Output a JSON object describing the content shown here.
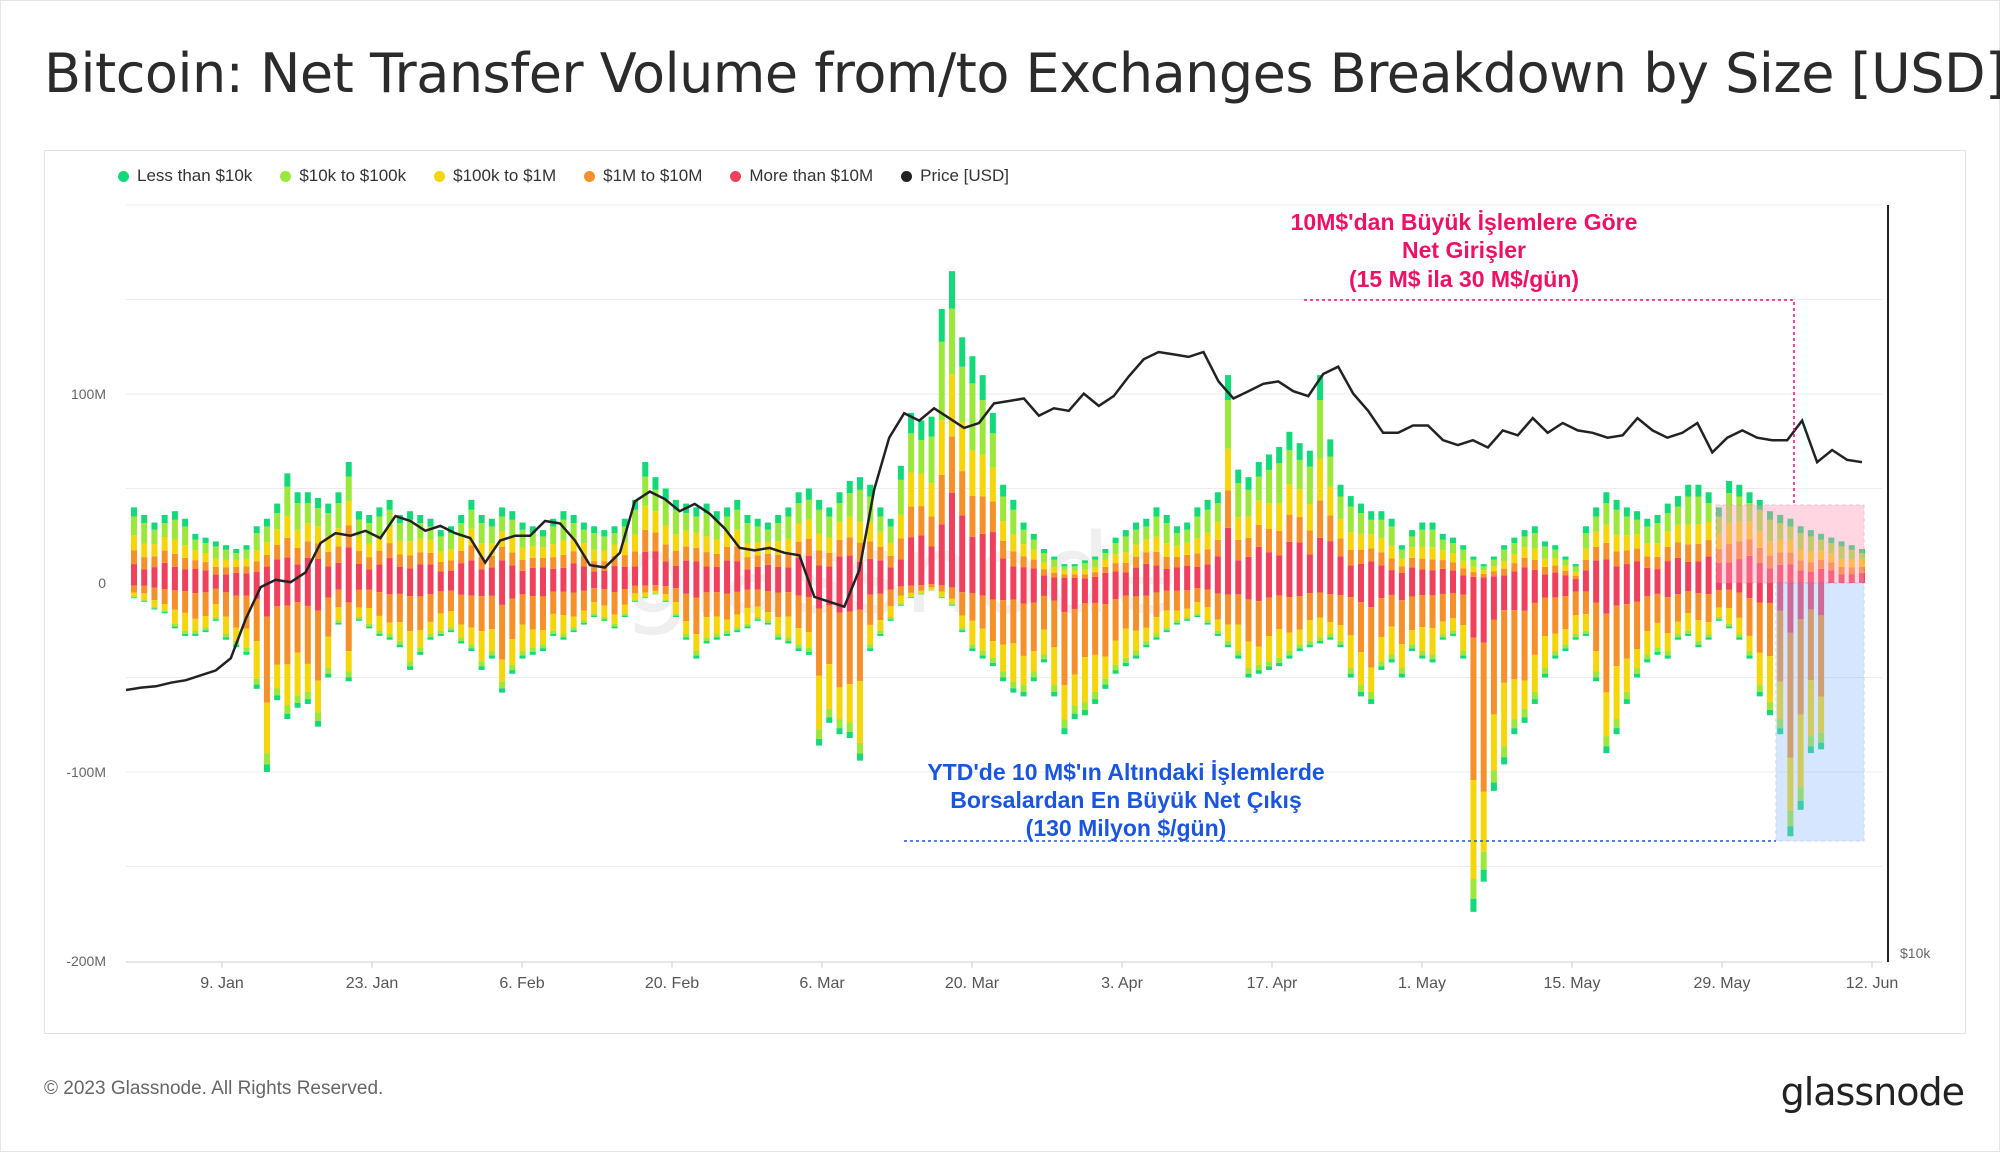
{
  "title": "Bitcoin: Net Transfer Volume from/to Exchanges Breakdown by Size [USD]",
  "legend": [
    {
      "label": "Less than $10k",
      "color": "#14d97a"
    },
    {
      "label": "$10k to $100k",
      "color": "#9be83a"
    },
    {
      "label": "$100k to $1M",
      "color": "#f5d60a"
    },
    {
      "label": "$1M to $10M",
      "color": "#f5902a"
    },
    {
      "label": "More than $10M",
      "color": "#f0405e"
    },
    {
      "label": "Price [USD]",
      "color": "#222222"
    }
  ],
  "annotations": {
    "inflow": {
      "line1": "10M$'dan Büyük İşlemlere Göre",
      "line2": "Net Girişler",
      "line3": "(15 M$ ila 30 M$/gün)",
      "color": "#ee1166"
    },
    "outflow": {
      "line1": "YTD'de 10 M$'ın Altındaki İşlemlerde",
      "line2": "Borsalardan En Büyük Net Çıkış",
      "line3": "(130 Milyon $/gün)",
      "color": "#1a55e0"
    }
  },
  "watermark": "glassnode",
  "footer": {
    "copyright": "© 2023 Glassnode. All Rights Reserved.",
    "logo": "glassnode"
  },
  "chart_data": {
    "type": "bar",
    "stacked": true,
    "title": "Bitcoin: Net Transfer Volume from/to Exchanges Breakdown by Size [USD]",
    "y_ticks": [
      "100M",
      "0",
      "-100M",
      "-200M"
    ],
    "y_range": [
      -200000000,
      200000000
    ],
    "price_axis_tick": "$10k",
    "x_ticks": [
      "9. Jan",
      "23. Jan",
      "6. Feb",
      "20. Feb",
      "6. Mar",
      "20. Mar",
      "3. Apr",
      "17. Apr",
      "1. May",
      "15. May",
      "29. May",
      "12. Jun"
    ],
    "x_range": [
      "2023-01-01",
      "2023-06-12"
    ],
    "legend_position": "top-left",
    "grid": true,
    "series": [
      {
        "name": "Less than $10k",
        "color": "#14d97a"
      },
      {
        "name": "$10k to $100k",
        "color": "#9be83a"
      },
      {
        "name": "$100k to $1M",
        "color": "#f5d60a"
      },
      {
        "name": "$1M to $10M",
        "color": "#f5902a"
      },
      {
        "name": "More than $10M",
        "color": "#f0405e"
      },
      {
        "name": "Price [USD]",
        "color": "#222222",
        "type": "line"
      }
    ],
    "daily_totals_millions": {
      "positive": [
        40,
        36,
        32,
        36,
        38,
        34,
        26,
        24,
        22,
        20,
        18,
        20,
        30,
        34,
        42,
        58,
        48,
        48,
        45,
        42,
        48,
        64,
        38,
        36,
        40,
        44,
        36,
        38,
        36,
        34,
        28,
        30,
        36,
        44,
        36,
        34,
        40,
        38,
        32,
        30,
        28,
        34,
        38,
        36,
        32,
        30,
        28,
        30,
        34,
        44,
        64,
        56,
        50,
        44,
        42,
        40,
        42,
        38,
        40,
        44,
        36,
        34,
        32,
        36,
        40,
        48,
        50,
        44,
        40,
        48,
        54,
        56,
        52,
        40,
        34,
        62,
        90,
        86,
        88,
        145,
        165,
        130,
        120,
        110,
        90,
        52,
        44,
        32,
        26,
        18,
        14,
        10,
        10,
        12,
        14,
        18,
        24,
        28,
        32,
        34,
        40,
        36,
        30,
        32,
        40,
        44,
        48,
        110,
        60,
        56,
        64,
        68,
        72,
        80,
        74,
        70,
        110,
        76,
        52,
        46,
        42,
        38,
        38,
        34,
        20,
        28,
        32,
        32,
        26,
        24,
        20,
        14,
        10,
        14,
        20,
        24,
        28,
        30,
        22,
        20,
        14,
        10,
        30,
        40,
        48,
        44,
        40,
        38,
        34,
        36,
        42,
        46,
        52,
        52,
        48,
        40,
        54,
        52,
        48,
        44,
        38,
        36,
        34,
        30,
        28,
        26,
        24,
        22,
        20,
        18
      ],
      "negative": [
        8,
        10,
        14,
        16,
        24,
        28,
        28,
        26,
        20,
        30,
        34,
        38,
        56,
        100,
        62,
        72,
        66,
        64,
        76,
        50,
        22,
        52,
        20,
        24,
        28,
        30,
        34,
        46,
        38,
        30,
        28,
        26,
        32,
        36,
        46,
        40,
        58,
        48,
        40,
        38,
        36,
        28,
        30,
        26,
        22,
        18,
        20,
        24,
        18,
        10,
        8,
        6,
        10,
        18,
        30,
        40,
        32,
        30,
        28,
        26,
        24,
        20,
        22,
        30,
        32,
        36,
        38,
        86,
        74,
        80,
        82,
        94,
        36,
        28,
        20,
        12,
        8,
        6,
        4,
        8,
        12,
        26,
        36,
        40,
        44,
        52,
        58,
        60,
        52,
        42,
        60,
        80,
        72,
        70,
        64,
        56,
        48,
        44,
        40,
        34,
        30,
        26,
        22,
        20,
        18,
        22,
        28,
        34,
        40,
        50,
        48,
        46,
        44,
        40,
        36,
        34,
        32,
        30,
        34,
        50,
        60,
        64,
        46,
        42,
        50,
        36,
        40,
        42,
        30,
        28,
        40,
        174,
        158,
        110,
        96,
        80,
        74,
        64,
        50,
        40,
        36,
        30,
        28,
        52,
        90,
        80,
        64,
        50,
        42,
        38,
        40,
        30,
        28,
        34,
        30,
        20,
        24,
        30,
        40,
        60,
        70,
        80,
        134,
        120,
        90,
        88
      ]
    },
    "price_usd_approx": [
      16600,
      16700,
      16750,
      16900,
      17000,
      17200,
      17400,
      17900,
      19500,
      20800,
      21100,
      21000,
      21400,
      22600,
      23000,
      22900,
      23100,
      22800,
      23700,
      23500,
      23100,
      23300,
      23000,
      22800,
      21800,
      22700,
      22900,
      22900,
      23500,
      23400,
      22700,
      21700,
      21600,
      22200,
      24300,
      24700,
      24400,
      23900,
      24200,
      23800,
      23200,
      22400,
      22300,
      22400,
      22200,
      22100,
      20400,
      20200,
      20000,
      21500,
      24800,
      26900,
      27900,
      27600,
      28100,
      27700,
      27300,
      27500,
      28300,
      28400,
      28500,
      27800,
      28100,
      28000,
      28700,
      28200,
      28600,
      29400,
      30100,
      30400,
      30300,
      30200,
      30400,
      29200,
      28500,
      28800,
      29100,
      29200,
      28800,
      28600,
      29500,
      29800,
      28700,
      28000,
      27100,
      27100,
      27400,
      27400,
      26800,
      26600,
      26800,
      26500,
      27200,
      27000,
      27700,
      27100,
      27500,
      27200,
      27100,
      26900,
      27000,
      27700,
      27200,
      26900,
      27100,
      27500,
      26300,
      26900,
      27200,
      26900,
      26800,
      26800,
      27600,
      25900,
      26400,
      26000,
      25900
    ],
    "price_axis_label": "$10k"
  }
}
